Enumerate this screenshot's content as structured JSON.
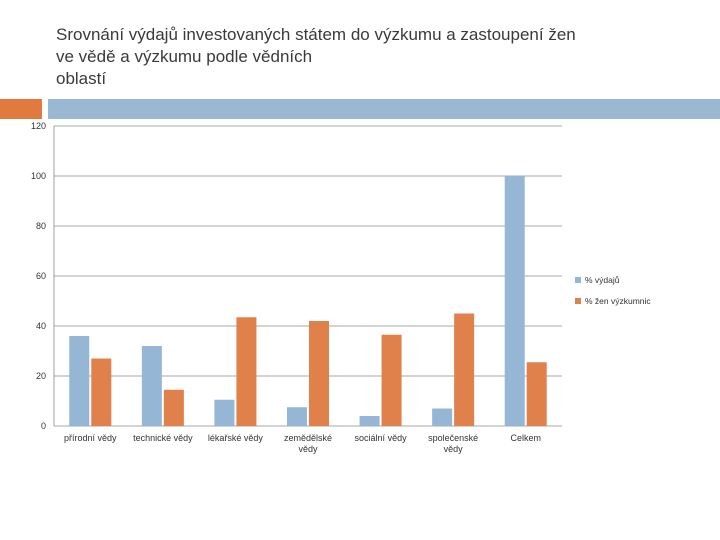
{
  "slide": {
    "title_line1": "Srovnání výdajů investovaných státem do výzkumu a zastoupení žen",
    "title_line2": "ve vědě a výzkumu podle vědních",
    "title_line3": "oblastí"
  },
  "colors": {
    "accent_orange": "#e07a3e",
    "accent_blue": "#9bb8d3",
    "series1": "#95b6d4",
    "series2": "#e0804a"
  },
  "chart_data": {
    "type": "bar",
    "title": "",
    "xlabel": "",
    "ylabel": "",
    "categories": [
      [
        "přírodní vědy"
      ],
      [
        "technické vědy"
      ],
      [
        "lékařské vědy"
      ],
      [
        "zemědělské",
        "vědy"
      ],
      [
        "sociální vědy"
      ],
      [
        "společenské",
        "vědy"
      ],
      [
        "Celkem"
      ]
    ],
    "series": [
      {
        "name": "% výdajů",
        "values": [
          36,
          32,
          10.5,
          7.5,
          4,
          7,
          100
        ]
      },
      {
        "name": "% žen výzkumnic",
        "values": [
          27,
          14.5,
          43.5,
          42,
          36.5,
          45,
          25.5
        ]
      }
    ],
    "ylim": [
      0,
      120
    ],
    "yticks": [
      0,
      20,
      40,
      60,
      80,
      100,
      120
    ],
    "grid": true,
    "legend": "right"
  }
}
